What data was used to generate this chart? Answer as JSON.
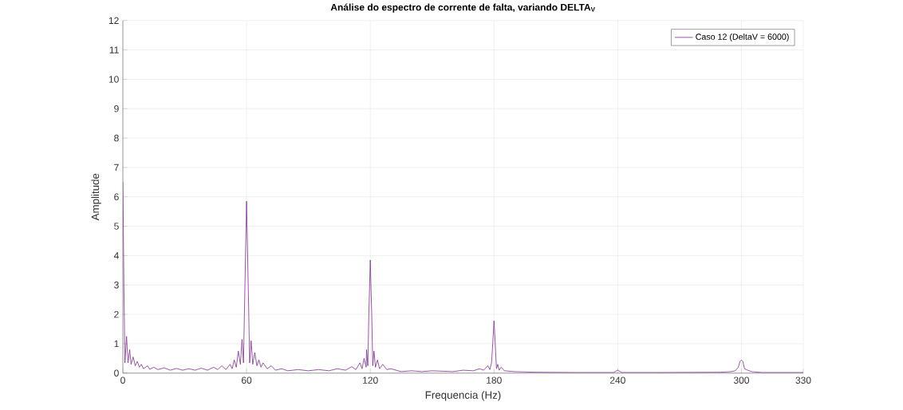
{
  "chart_data": {
    "type": "line",
    "title": "Análise do espectro de corrente de falta, variando DELTA$_{V}$",
    "xlabel": "Frequencia (Hz)",
    "ylabel": "Amplitude",
    "x": [
      0,
      0.5,
      1,
      1.8,
      2.5,
      3.3,
      4,
      5,
      6,
      7,
      8,
      9,
      10,
      12,
      13,
      15,
      17,
      20,
      23,
      26,
      29,
      32,
      35,
      38,
      41,
      44,
      46,
      48,
      50,
      52,
      53,
      54,
      55,
      56,
      57,
      57.8,
      58.5,
      60,
      60.8,
      61.5,
      62.2,
      63,
      64,
      65,
      66,
      67,
      68,
      70,
      72,
      74,
      77,
      80,
      85,
      90,
      95,
      100,
      104,
      108,
      111,
      113,
      115,
      116,
      117,
      118,
      118.2,
      118.8,
      119.3,
      120,
      120.7,
      121.2,
      121.8,
      122.5,
      123.5,
      124.5,
      126,
      128,
      130,
      135,
      140,
      145,
      150,
      160,
      165,
      170,
      173,
      175,
      177,
      178,
      178.8,
      179.4,
      180,
      180.6,
      181.2,
      181.8,
      182.5,
      183.5,
      185,
      190,
      200,
      220,
      238,
      240,
      242,
      260,
      290,
      295,
      297,
      298.5,
      299.3,
      300,
      300.7,
      301.5,
      303,
      305,
      310,
      330
    ],
    "series": [
      {
        "name": "Caso 12 (DeltaV = 6000)",
        "color": "#7e2f8e",
        "values": [
          6.5,
          3,
          0.35,
          1.25,
          0.35,
          0.8,
          0.3,
          0.55,
          0.25,
          0.4,
          0.2,
          0.3,
          0.15,
          0.25,
          0.13,
          0.2,
          0.12,
          0.18,
          0.1,
          0.16,
          0.1,
          0.15,
          0.1,
          0.17,
          0.1,
          0.2,
          0.12,
          0.25,
          0.12,
          0.3,
          0.15,
          0.45,
          0.2,
          0.75,
          0.3,
          1.15,
          0.35,
          5.85,
          3,
          0.35,
          1.1,
          0.3,
          0.7,
          0.25,
          0.45,
          0.2,
          0.35,
          0.15,
          0.25,
          0.1,
          0.15,
          0.08,
          0.12,
          0.08,
          0.12,
          0.08,
          0.15,
          0.1,
          0.22,
          0.12,
          0.35,
          0.15,
          0.5,
          0.2,
          0.8,
          0.25,
          2,
          3.85,
          2,
          0.25,
          0.75,
          0.2,
          0.45,
          0.15,
          0.3,
          0.12,
          0.15,
          0.05,
          0.08,
          0.05,
          0.08,
          0.05,
          0.1,
          0.08,
          0.15,
          0.1,
          0.25,
          0.12,
          0.35,
          1,
          1.78,
          1,
          0.15,
          0.3,
          0.1,
          0.2,
          0.08,
          0.05,
          0.03,
          0.02,
          0.02,
          0.1,
          0.02,
          0.02,
          0.03,
          0.05,
          0.08,
          0.2,
          0.4,
          0.45,
          0.4,
          0.15,
          0.1,
          0.05,
          0.02,
          0.02
        ]
      }
    ],
    "xlim": [
      0,
      330
    ],
    "xticks": [
      0,
      60,
      120,
      180,
      240,
      300,
      330
    ],
    "ylim": [
      0,
      12
    ],
    "yticks": [
      0,
      1,
      2,
      3,
      4,
      5,
      6,
      7,
      8,
      9,
      10,
      11,
      12
    ],
    "grid": true,
    "legend": "top right",
    "line_style": "solid",
    "marker": "none"
  }
}
